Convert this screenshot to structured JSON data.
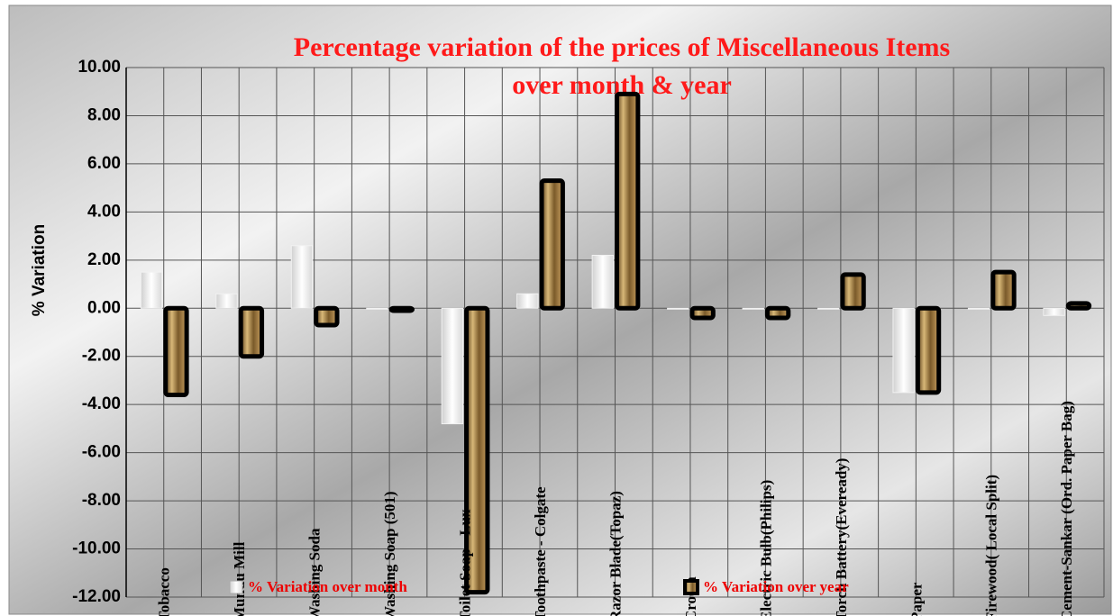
{
  "chart_data": {
    "type": "bar",
    "title": "Percentage variation of the prices of Miscellaneous Items over month & year",
    "y_label": "% Variation",
    "categories": [
      "Tobacco",
      "Mundu Mill",
      "Washing Soda",
      "Washing Soap (501)",
      "Toilet Soap - Lux",
      "Toothpaste - Colgate",
      "Razor Blade(Topaz)",
      "Crocin",
      "Electric Bulb(Philips)",
      "Torch Battery(Eveready)",
      "Paper",
      "Firewood( Local Split)",
      "Cement-Sankar (Ord. Paper Bag)"
    ],
    "series": [
      {
        "name": "% Variation over month",
        "color": "#f2f2f2",
        "values": [
          1.5,
          0.6,
          2.6,
          0,
          -4.8,
          0.6,
          2.2,
          0,
          0,
          0,
          -3.5,
          0,
          -0.3
        ]
      },
      {
        "name": "% Variation over year",
        "color": "#8a6a3a",
        "values": [
          -3.6,
          -2.0,
          -0.7,
          -0.1,
          -11.8,
          5.3,
          8.9,
          -0.4,
          -0.4,
          1.4,
          -3.5,
          1.5,
          0.2
        ]
      }
    ],
    "ylim": [
      -12,
      10
    ],
    "yticks": [
      {
        "value": 10,
        "label": "10.00"
      },
      {
        "value": 8,
        "label": "8.00"
      },
      {
        "value": 6,
        "label": "6.00"
      },
      {
        "value": 4,
        "label": "4.00"
      },
      {
        "value": 2,
        "label": "2.00"
      },
      {
        "value": 0,
        "label": "0.00"
      },
      {
        "value": -2,
        "label": "-2.00"
      },
      {
        "value": -4,
        "label": "-4.00"
      },
      {
        "value": -6,
        "label": "-6.00"
      },
      {
        "value": -8,
        "label": "-8.00"
      },
      {
        "value": -10,
        "label": "-10.00"
      },
      {
        "value": -12,
        "label": "-12.00"
      }
    ],
    "grid": true,
    "legend": "bottom"
  }
}
